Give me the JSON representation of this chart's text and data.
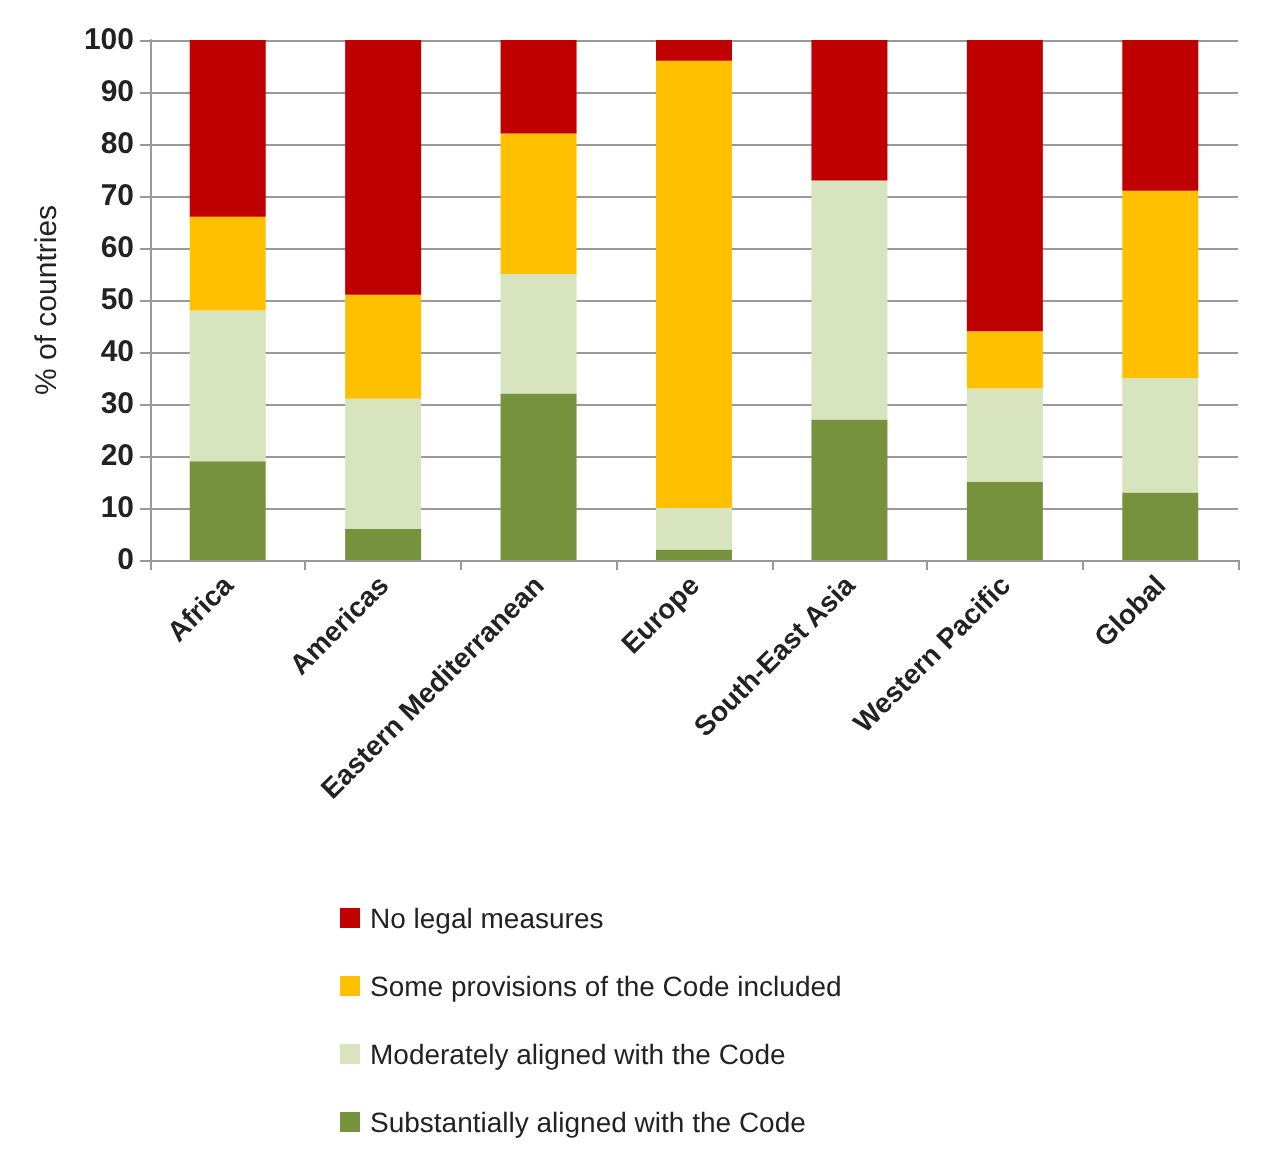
{
  "chart_data": {
    "type": "bar",
    "stacked": true,
    "ylabel": "% of countries",
    "categories": [
      "Africa",
      "Americas",
      "Eastern Mediterranean",
      "Europe",
      "South-East Asia",
      "Western Pacific",
      "Global"
    ],
    "series": [
      {
        "name": "Substantially aligned with the Code",
        "color": "#76923c",
        "values": [
          19,
          6,
          32,
          2,
          27,
          15,
          13
        ]
      },
      {
        "name": "Moderately aligned with the Code",
        "color": "#d7e4bd",
        "values": [
          29,
          25,
          23,
          8,
          46,
          18,
          22
        ]
      },
      {
        "name": "Some provisions of the Code included",
        "color": "#ffc000",
        "values": [
          18,
          20,
          27,
          86,
          0,
          11,
          36
        ]
      },
      {
        "name": "No legal measures",
        "color": "#c00000",
        "values": [
          34,
          49,
          18,
          4,
          27,
          56,
          29
        ]
      }
    ],
    "ylim": [
      0,
      100
    ],
    "yticks": [
      0,
      10,
      20,
      30,
      40,
      50,
      60,
      70,
      80,
      90,
      100
    ],
    "grid": "y",
    "legend": "bottom"
  }
}
